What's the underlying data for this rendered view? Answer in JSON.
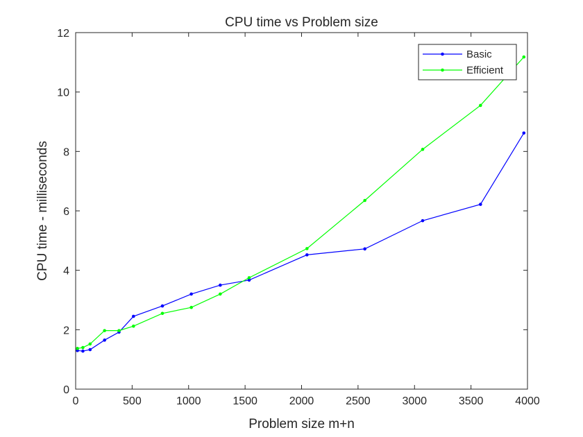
{
  "chart_data": {
    "type": "line",
    "title": "CPU time vs Problem size",
    "xlabel": "Problem size m+n",
    "ylabel": "CPU time - milliseconds",
    "xlim": [
      0,
      4000
    ],
    "ylim": [
      0,
      12
    ],
    "xticks": [
      0,
      500,
      1000,
      1500,
      2000,
      2500,
      3000,
      3500,
      4000
    ],
    "yticks": [
      0,
      2,
      4,
      6,
      8,
      10,
      12
    ],
    "xtick_labels": [
      "0",
      "500",
      "1000",
      "1500",
      "2000",
      "2500",
      "3000",
      "3500",
      "4000"
    ],
    "ytick_labels": [
      "0",
      "2",
      "4",
      "6",
      "8",
      "10",
      "12"
    ],
    "grid": false,
    "legend_position": "top-right",
    "series": [
      {
        "name": "Basic",
        "color": "#0000ff",
        "x": [
          16,
          64,
          128,
          256,
          384,
          512,
          768,
          1024,
          1280,
          1536,
          2048,
          2560,
          3072,
          3584,
          3968
        ],
        "y": [
          1.3,
          1.28,
          1.33,
          1.65,
          1.92,
          2.45,
          2.8,
          3.2,
          3.5,
          3.67,
          4.52,
          4.72,
          5.67,
          6.22,
          8.62
        ]
      },
      {
        "name": "Efficient",
        "color": "#00ff00",
        "x": [
          16,
          64,
          128,
          256,
          384,
          512,
          768,
          1024,
          1280,
          1536,
          2048,
          2560,
          3072,
          3584,
          3968
        ],
        "y": [
          1.37,
          1.4,
          1.52,
          1.97,
          1.97,
          2.12,
          2.55,
          2.75,
          3.2,
          3.75,
          4.73,
          6.35,
          8.07,
          9.55,
          11.18
        ]
      }
    ]
  }
}
